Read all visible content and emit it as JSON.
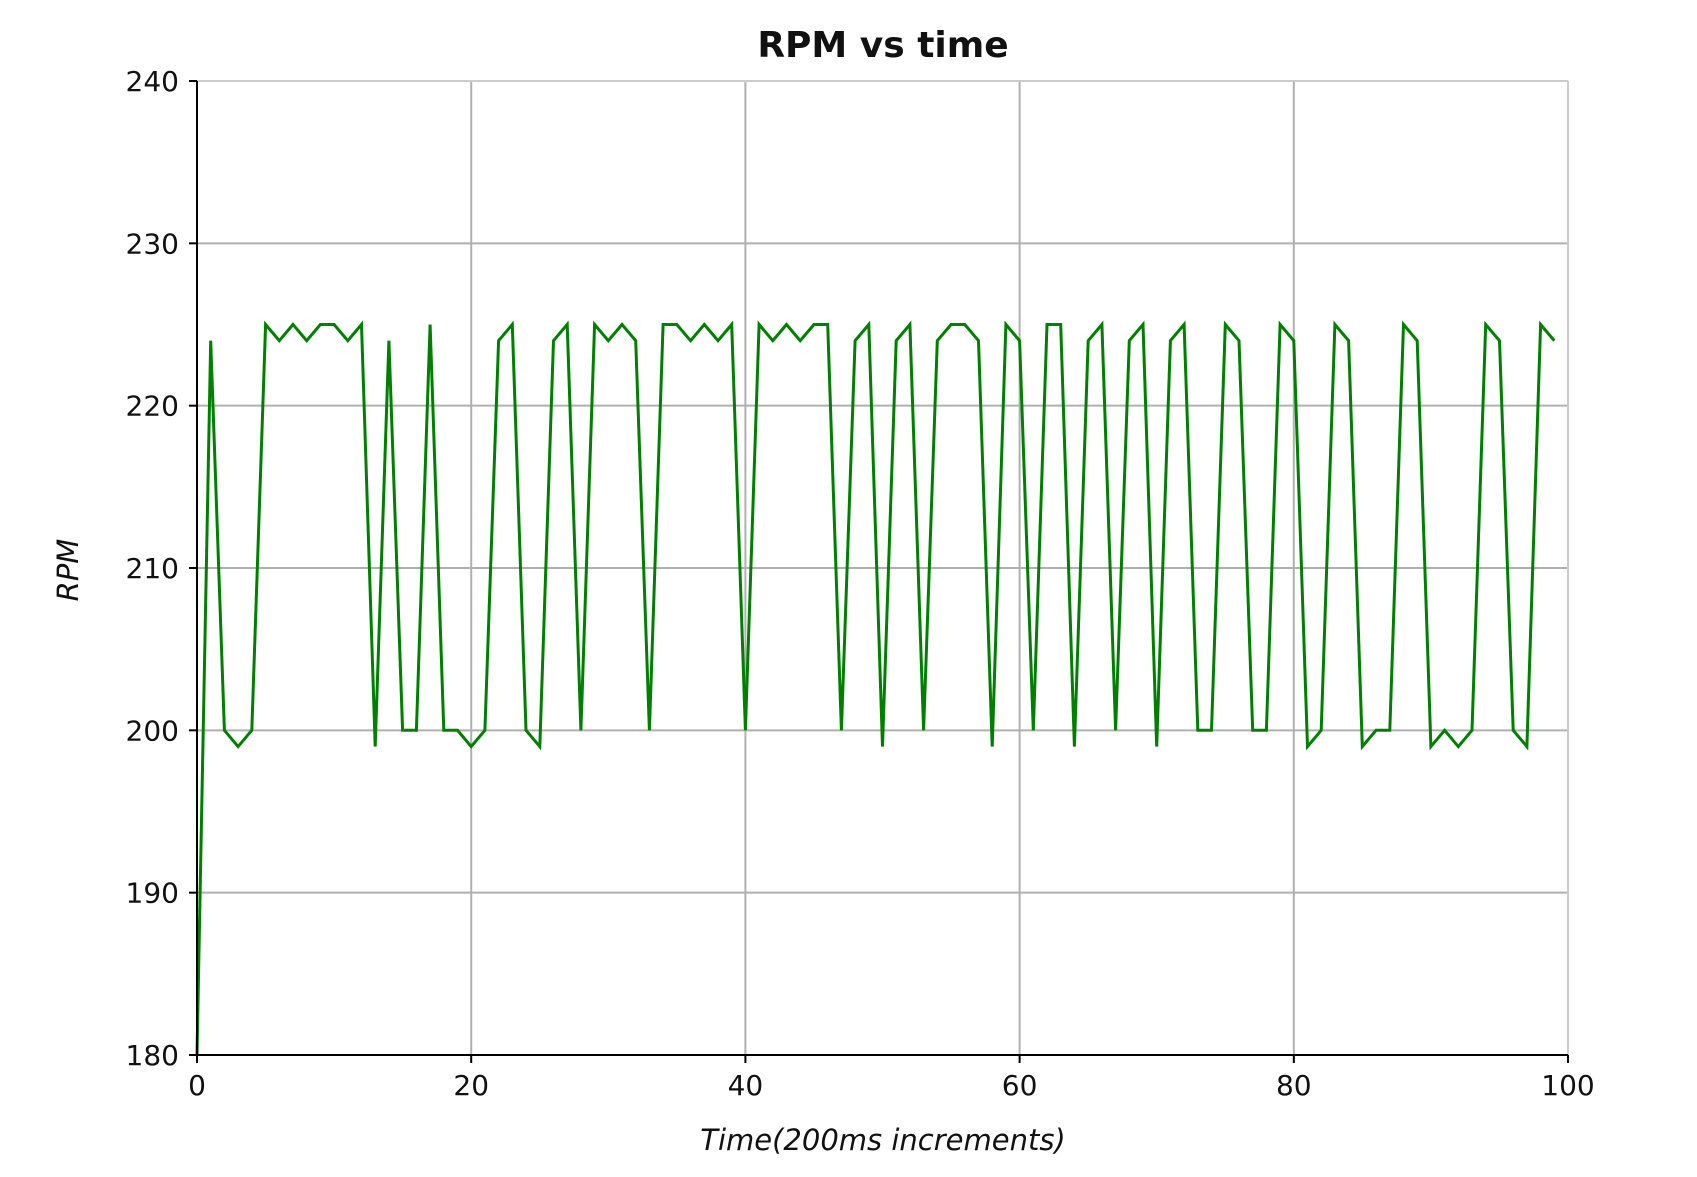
{
  "chart_data": {
    "type": "line",
    "title": "RPM vs time",
    "xlabel": "Time(200ms increments)",
    "ylabel": "RPM",
    "xlim": [
      0,
      100
    ],
    "ylim": [
      180,
      240
    ],
    "xticks": [
      0,
      20,
      40,
      60,
      80,
      100
    ],
    "yticks": [
      180,
      190,
      200,
      210,
      220,
      230,
      240
    ],
    "grid": true,
    "legend": "none",
    "series": [
      {
        "color": "#008000",
        "x": [
          0,
          1,
          2,
          3,
          4,
          5,
          6,
          7,
          8,
          9,
          10,
          11,
          12,
          13,
          14,
          15,
          16,
          17,
          18,
          19,
          20,
          21,
          22,
          23,
          24,
          25,
          26,
          27,
          28,
          29,
          30,
          31,
          32,
          33,
          34,
          35,
          36,
          37,
          38,
          39,
          40,
          41,
          42,
          43,
          44,
          45,
          46,
          47,
          48,
          49,
          50,
          51,
          52,
          53,
          54,
          55,
          56,
          57,
          58,
          59,
          60,
          61,
          62,
          63,
          64,
          65,
          66,
          67,
          68,
          69,
          70,
          71,
          72,
          73,
          74,
          75,
          76,
          77,
          78,
          79,
          80,
          81,
          82,
          83,
          84,
          85,
          86,
          87,
          88,
          89,
          90,
          91,
          92,
          93,
          94,
          95,
          96,
          97,
          98,
          99
        ],
        "y": [
          180,
          224,
          200,
          199,
          200,
          225,
          224,
          225,
          224,
          225,
          225,
          224,
          225,
          199,
          224,
          200,
          200,
          225,
          200,
          200,
          199,
          200,
          224,
          225,
          200,
          199,
          224,
          225,
          200,
          225,
          224,
          225,
          224,
          200,
          225,
          225,
          224,
          225,
          224,
          225,
          200,
          225,
          224,
          225,
          224,
          225,
          225,
          200,
          224,
          225,
          199,
          224,
          225,
          200,
          224,
          225,
          225,
          224,
          199,
          225,
          224,
          200,
          225,
          225,
          199,
          224,
          225,
          200,
          224,
          225,
          199,
          224,
          225,
          200,
          200,
          225,
          224,
          200,
          200,
          225,
          224,
          199,
          200,
          225,
          224,
          199,
          200,
          200,
          225,
          224,
          199,
          200,
          199,
          200,
          225,
          224,
          200,
          199,
          225,
          224
        ]
      }
    ]
  }
}
